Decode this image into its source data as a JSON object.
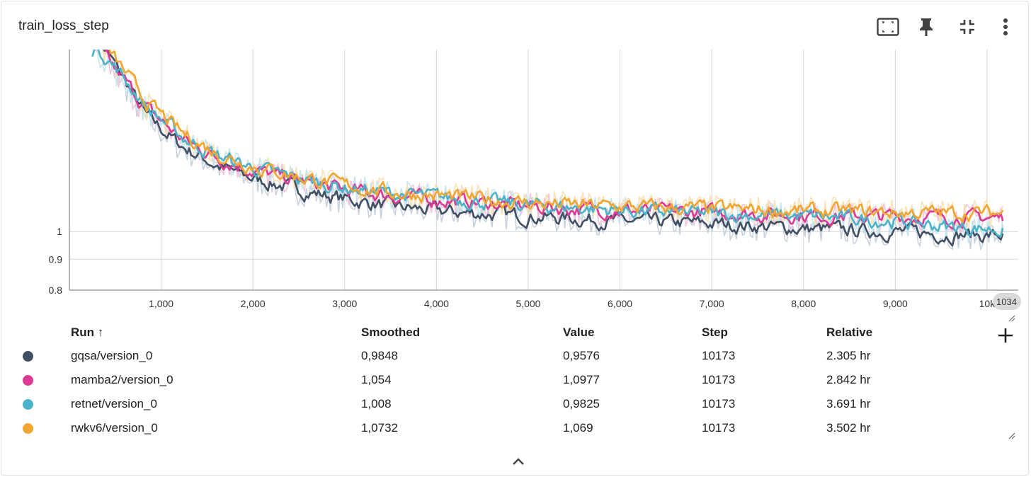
{
  "card": {
    "title": "train_loss_step"
  },
  "toolbar": {
    "fit_domain_icon": "fit-domain-icon",
    "pin_icon": "pin-icon",
    "collapse_icon": "collapse-icon",
    "more_icon": "more-vert-icon"
  },
  "table": {
    "headers": {
      "run": "Run ↑",
      "smoothed": "Smoothed",
      "value": "Value",
      "step": "Step",
      "relative": "Relative"
    },
    "rows": [
      {
        "run": "gqsa/version_0",
        "smoothed": "0,9848",
        "value": "0,9576",
        "step": "10173",
        "relative": "2.305 hr",
        "color": "#425066"
      },
      {
        "run": "mamba2/version_0",
        "smoothed": "1,054",
        "value": "1,0977",
        "step": "10173",
        "relative": "2.842 hr",
        "color": "#DC3A95"
      },
      {
        "run": "retnet/version_0",
        "smoothed": "1,008",
        "value": "0,9825",
        "step": "10173",
        "relative": "3.691 hr",
        "color": "#4BB3C9"
      },
      {
        "run": "rwkv6/version_0",
        "smoothed": "1,0732",
        "value": "1,069",
        "step": "10173",
        "relative": "3.502 hr",
        "color": "#F0A630"
      }
    ]
  },
  "chart_data": {
    "type": "line",
    "title": "train_loss_step",
    "xlabel": "",
    "ylabel": "",
    "scale_y": "log",
    "xlim": [
      0,
      10340
    ],
    "ylim": [
      0.8,
      2.0
    ],
    "x_ticks": [
      {
        "value": 1000,
        "label": "1,000"
      },
      {
        "value": 2000,
        "label": "2,000"
      },
      {
        "value": 3000,
        "label": "3,000"
      },
      {
        "value": 4000,
        "label": "4,000"
      },
      {
        "value": 5000,
        "label": "5,000"
      },
      {
        "value": 6000,
        "label": "6,000"
      },
      {
        "value": 7000,
        "label": "7,000"
      },
      {
        "value": 8000,
        "label": "8,000"
      },
      {
        "value": 9000,
        "label": "9,000"
      },
      {
        "value": 10000,
        "label": "10k"
      }
    ],
    "y_ticks": [
      {
        "value": 1.0,
        "label": "1"
      },
      {
        "value": 0.9,
        "label": "0.9"
      },
      {
        "value": 0.8,
        "label": "0.8"
      }
    ],
    "step_badge": "1034",
    "x": [
      400,
      800,
      1200,
      1600,
      2000,
      2500,
      3000,
      3500,
      4000,
      4500,
      5000,
      5500,
      6000,
      6500,
      7000,
      7500,
      8000,
      8500,
      9000,
      9500,
      10173
    ],
    "series": [
      {
        "name": "gqsa/version_0",
        "color": "#425066",
        "raw_color": "#C9D1DD",
        "values": [
          1.95,
          1.55,
          1.38,
          1.28,
          1.22,
          1.17,
          1.13,
          1.1,
          1.08,
          1.07,
          1.06,
          1.05,
          1.04,
          1.035,
          1.03,
          1.02,
          1.01,
          1.005,
          1.0,
          0.99,
          0.985
        ]
      },
      {
        "name": "mamba2/version_0",
        "color": "#DC3A95",
        "raw_color": "#F2C4DC",
        "values": [
          1.9,
          1.6,
          1.42,
          1.32,
          1.26,
          1.21,
          1.17,
          1.145,
          1.13,
          1.115,
          1.1,
          1.09,
          1.085,
          1.08,
          1.075,
          1.07,
          1.065,
          1.06,
          1.06,
          1.055,
          1.054
        ]
      },
      {
        "name": "retnet/version_0",
        "color": "#4BB3C9",
        "raw_color": "#C5E6EE",
        "values": [
          1.92,
          1.61,
          1.43,
          1.33,
          1.27,
          1.22,
          1.18,
          1.155,
          1.14,
          1.12,
          1.105,
          1.095,
          1.085,
          1.075,
          1.07,
          1.065,
          1.06,
          1.05,
          1.04,
          1.02,
          1.008
        ]
      },
      {
        "name": "rwkv6/version_0",
        "color": "#F0A630",
        "raw_color": "#FAE2B5",
        "values": [
          1.98,
          1.64,
          1.45,
          1.34,
          1.28,
          1.23,
          1.19,
          1.16,
          1.145,
          1.13,
          1.115,
          1.105,
          1.1,
          1.095,
          1.09,
          1.085,
          1.08,
          1.08,
          1.075,
          1.074,
          1.0732
        ]
      }
    ]
  }
}
